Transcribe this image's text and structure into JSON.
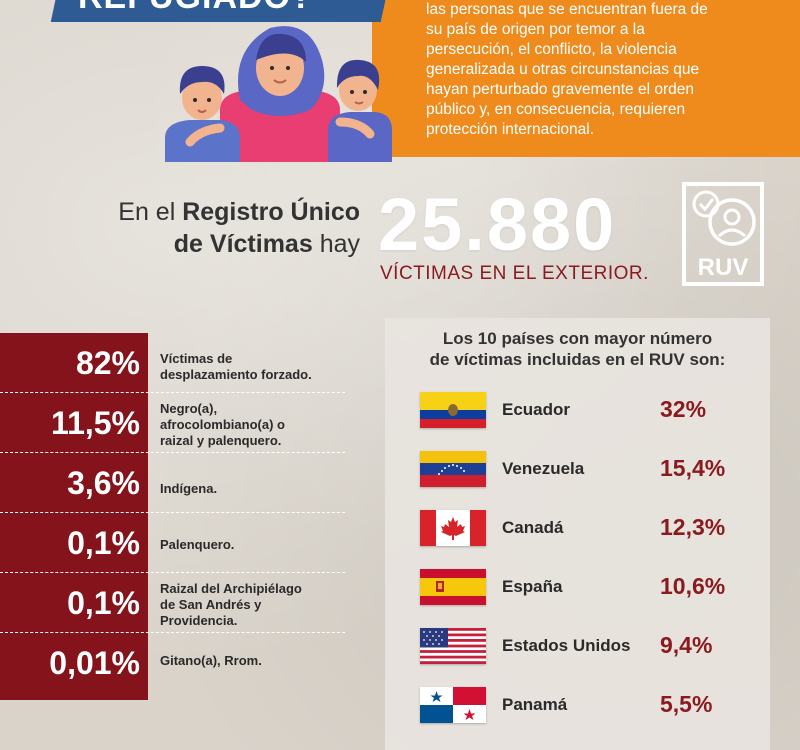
{
  "header": {
    "title": "REFUGIADO?",
    "definition_lines": [
      "las personas que se encuentran fuera de",
      "su país de origen por temor a la",
      "persecución, el conflicto, la violencia",
      "generalizada u otras circunstancias que",
      "hayan perturbado gravemente el orden",
      "público y, en consecuencia, requieren",
      "protección internacional."
    ]
  },
  "ruv": {
    "intro_prefix": "En el",
    "intro_bold1": "Registro Único",
    "intro_bold2": "de Víctimas",
    "intro_suffix": "hay",
    "number": "25.880",
    "subtitle": "VÍCTIMAS EN EL EXTERIOR.",
    "icon_label": "RUV"
  },
  "stats": [
    {
      "value": "82%",
      "lines": [
        "Víctimas de",
        "desplazamiento forzado."
      ]
    },
    {
      "value": "11,5%",
      "lines": [
        "Negro(a),",
        "afrocolombiano(a) o",
        "raizal y palenquero."
      ]
    },
    {
      "value": "3,6%",
      "lines": [
        "Indígena."
      ]
    },
    {
      "value": "0,1%",
      "lines": [
        "Palenquero."
      ]
    },
    {
      "value": "0,1%",
      "lines": [
        "Raizal del Archipiélago",
        "de San Andrés y",
        "Providencia."
      ]
    },
    {
      "value": "0,01%",
      "lines": [
        "Gitano(a), Rrom."
      ]
    }
  ],
  "countries_panel": {
    "title_line1": "Los 10 países con mayor número",
    "title_line2": "de víctimas incluidas en el RUV son:",
    "countries": [
      {
        "name": "Ecuador",
        "pct": "32%",
        "flag": "ecuador-flag"
      },
      {
        "name": "Venezuela",
        "pct": "15,4%",
        "flag": "venezuela-flag"
      },
      {
        "name": "Canadá",
        "pct": "12,3%",
        "flag": "canada-flag"
      },
      {
        "name": "España",
        "pct": "10,6%",
        "flag": "spain-flag"
      },
      {
        "name": "Estados Unidos",
        "pct": "9,4%",
        "flag": "usa-flag"
      },
      {
        "name": "Panamá",
        "pct": "5,5%",
        "flag": "panama-flag"
      }
    ]
  },
  "colors": {
    "orange": "#ef8b1c",
    "blue": "#2f5b94",
    "maroon": "#85131b",
    "accent_red": "#8a1a1f"
  }
}
